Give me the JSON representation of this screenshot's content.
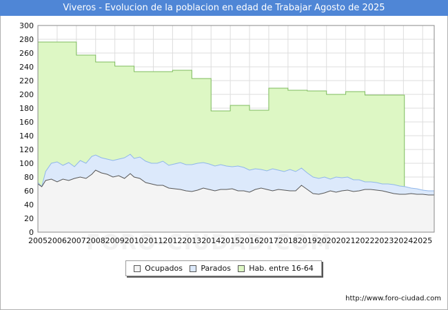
{
  "title": "Viveros - Evolucion de la poblacion en edad de Trabajar Agosto de 2025",
  "source": "http://www.foro-ciudad.com",
  "watermark": "FORO-CIUDAD.COM",
  "chart_data": {
    "type": "area",
    "title": "Viveros - Evolucion de la poblacion en edad de Trabajar Agosto de 2025",
    "xlim": [
      2005,
      2025.6
    ],
    "ylim": [
      0,
      300
    ],
    "yticks": [
      0,
      20,
      40,
      60,
      80,
      100,
      120,
      140,
      160,
      180,
      200,
      220,
      240,
      260,
      280,
      300
    ],
    "xticks": [
      "2005",
      "2006",
      "2007",
      "2008",
      "2009",
      "2010",
      "2011",
      "2012",
      "2013",
      "2014",
      "2015",
      "2016",
      "2017",
      "2018",
      "2019",
      "2020",
      "2021",
      "2022",
      "2023",
      "2024",
      "2025"
    ],
    "grid": true,
    "legend_position": "bottom",
    "series": [
      {
        "name": "Hab. entre 16-64",
        "color": "#ddf7c4",
        "stroke": "#7dbb5c",
        "steps": [
          {
            "year": 2005,
            "value": 276
          },
          {
            "year": 2006,
            "value": 276
          },
          {
            "year": 2007,
            "value": 257
          },
          {
            "year": 2008,
            "value": 247
          },
          {
            "year": 2009,
            "value": 241
          },
          {
            "year": 2010,
            "value": 233
          },
          {
            "year": 2011,
            "value": 233
          },
          {
            "year": 2012,
            "value": 235
          },
          {
            "year": 2013,
            "value": 223
          },
          {
            "year": 2014,
            "value": 176
          },
          {
            "year": 2015,
            "value": 184
          },
          {
            "year": 2016,
            "value": 177
          },
          {
            "year": 2017,
            "value": 209
          },
          {
            "year": 2018,
            "value": 206
          },
          {
            "year": 2019,
            "value": 205
          },
          {
            "year": 2020,
            "value": 200
          },
          {
            "year": 2021,
            "value": 204
          },
          {
            "year": 2022,
            "value": 199
          },
          {
            "year": 2023,
            "value": 199
          }
        ],
        "end_year": 2024.05
      },
      {
        "name": "Parados",
        "color": "#dce9fb",
        "stroke": "#8fb6ea",
        "points": [
          [
            2005.0,
            72
          ],
          [
            2005.2,
            66
          ],
          [
            2005.4,
            88
          ],
          [
            2005.7,
            100
          ],
          [
            2006.0,
            102
          ],
          [
            2006.3,
            97
          ],
          [
            2006.6,
            101
          ],
          [
            2006.9,
            95
          ],
          [
            2007.2,
            104
          ],
          [
            2007.5,
            100
          ],
          [
            2007.8,
            110
          ],
          [
            2008.0,
            112
          ],
          [
            2008.3,
            108
          ],
          [
            2008.6,
            106
          ],
          [
            2008.9,
            104
          ],
          [
            2009.2,
            106
          ],
          [
            2009.5,
            108
          ],
          [
            2009.8,
            113
          ],
          [
            2010.0,
            107
          ],
          [
            2010.3,
            109
          ],
          [
            2010.6,
            103
          ],
          [
            2010.9,
            100
          ],
          [
            2011.2,
            100
          ],
          [
            2011.5,
            103
          ],
          [
            2011.8,
            97
          ],
          [
            2012.1,
            99
          ],
          [
            2012.4,
            101
          ],
          [
            2012.7,
            98
          ],
          [
            2013.0,
            98
          ],
          [
            2013.3,
            100
          ],
          [
            2013.6,
            101
          ],
          [
            2013.9,
            99
          ],
          [
            2014.2,
            96
          ],
          [
            2014.5,
            98
          ],
          [
            2014.8,
            96
          ],
          [
            2015.1,
            95
          ],
          [
            2015.4,
            96
          ],
          [
            2015.7,
            94
          ],
          [
            2016.0,
            90
          ],
          [
            2016.3,
            92
          ],
          [
            2016.6,
            91
          ],
          [
            2016.9,
            89
          ],
          [
            2017.2,
            92
          ],
          [
            2017.5,
            90
          ],
          [
            2017.8,
            88
          ],
          [
            2018.1,
            91
          ],
          [
            2018.4,
            88
          ],
          [
            2018.7,
            93
          ],
          [
            2019.0,
            86
          ],
          [
            2019.3,
            80
          ],
          [
            2019.6,
            78
          ],
          [
            2019.9,
            80
          ],
          [
            2020.2,
            77
          ],
          [
            2020.5,
            80
          ],
          [
            2020.8,
            79
          ],
          [
            2021.1,
            80
          ],
          [
            2021.4,
            76
          ],
          [
            2021.7,
            76
          ],
          [
            2022.0,
            73
          ],
          [
            2022.3,
            73
          ],
          [
            2022.6,
            72
          ],
          [
            2022.9,
            70
          ],
          [
            2023.2,
            70
          ],
          [
            2023.5,
            69
          ],
          [
            2023.8,
            67
          ],
          [
            2024.1,
            66
          ],
          [
            2024.4,
            64
          ],
          [
            2024.7,
            63
          ],
          [
            2025.0,
            61
          ],
          [
            2025.3,
            60
          ],
          [
            2025.6,
            60
          ]
        ]
      },
      {
        "name": "Ocupados",
        "color": "#f4f4f4",
        "stroke": "#555555",
        "points": [
          [
            2005.0,
            70
          ],
          [
            2005.2,
            66
          ],
          [
            2005.4,
            75
          ],
          [
            2005.7,
            77
          ],
          [
            2006.0,
            73
          ],
          [
            2006.3,
            77
          ],
          [
            2006.6,
            75
          ],
          [
            2006.9,
            78
          ],
          [
            2007.2,
            80
          ],
          [
            2007.5,
            78
          ],
          [
            2007.8,
            84
          ],
          [
            2008.0,
            90
          ],
          [
            2008.3,
            86
          ],
          [
            2008.6,
            84
          ],
          [
            2008.9,
            80
          ],
          [
            2009.2,
            82
          ],
          [
            2009.5,
            78
          ],
          [
            2009.8,
            85
          ],
          [
            2010.0,
            80
          ],
          [
            2010.3,
            78
          ],
          [
            2010.6,
            72
          ],
          [
            2010.9,
            70
          ],
          [
            2011.2,
            68
          ],
          [
            2011.5,
            68
          ],
          [
            2011.8,
            64
          ],
          [
            2012.1,
            63
          ],
          [
            2012.4,
            62
          ],
          [
            2012.7,
            60
          ],
          [
            2013.0,
            59
          ],
          [
            2013.3,
            61
          ],
          [
            2013.6,
            64
          ],
          [
            2013.9,
            62
          ],
          [
            2014.2,
            60
          ],
          [
            2014.5,
            62
          ],
          [
            2014.8,
            62
          ],
          [
            2015.1,
            63
          ],
          [
            2015.4,
            60
          ],
          [
            2015.7,
            60
          ],
          [
            2016.0,
            58
          ],
          [
            2016.3,
            62
          ],
          [
            2016.6,
            64
          ],
          [
            2016.9,
            62
          ],
          [
            2017.2,
            60
          ],
          [
            2017.5,
            62
          ],
          [
            2017.8,
            61
          ],
          [
            2018.1,
            60
          ],
          [
            2018.4,
            60
          ],
          [
            2018.7,
            68
          ],
          [
            2019.0,
            62
          ],
          [
            2019.3,
            56
          ],
          [
            2019.6,
            55
          ],
          [
            2019.9,
            57
          ],
          [
            2020.2,
            60
          ],
          [
            2020.5,
            58
          ],
          [
            2020.8,
            60
          ],
          [
            2021.1,
            61
          ],
          [
            2021.4,
            59
          ],
          [
            2021.7,
            60
          ],
          [
            2022.0,
            62
          ],
          [
            2022.3,
            62
          ],
          [
            2022.6,
            61
          ],
          [
            2022.9,
            60
          ],
          [
            2023.2,
            58
          ],
          [
            2023.5,
            56
          ],
          [
            2023.8,
            55
          ],
          [
            2024.1,
            55
          ],
          [
            2024.4,
            56
          ],
          [
            2024.7,
            55
          ],
          [
            2025.0,
            55
          ],
          [
            2025.3,
            54
          ],
          [
            2025.6,
            54
          ]
        ]
      }
    ],
    "legend": [
      "Ocupados",
      "Parados",
      "Hab. entre 16-64"
    ]
  }
}
